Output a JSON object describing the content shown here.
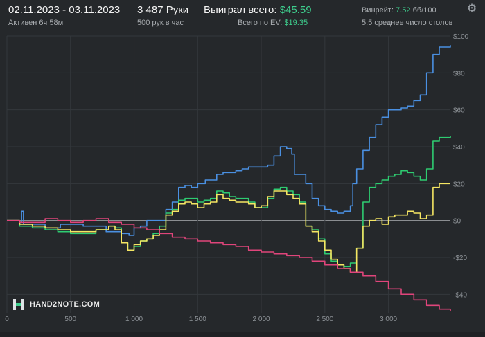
{
  "header": {
    "date_range": "02.11.2023 - 03.11.2023",
    "active_time": "Активен 6ч 58м",
    "hands": "3 487 Руки",
    "hands_rate": "500 рук в час",
    "won_label": "Выиграл всего:",
    "won_value": "$45.59",
    "ev_label": "Всего по EV:",
    "ev_value": "$19.35",
    "winrate_label": "Винрейт:",
    "winrate_value": "7.52",
    "winrate_unit": "бб/100",
    "tables": "5.5 среднее число столов"
  },
  "logo": {
    "text": "HAND2NOTE.COM"
  },
  "colors": {
    "background": "#25282b",
    "grid": "#34383c",
    "zero_line": "#9a9da0",
    "blue": "#4a90e2",
    "green": "#2ecc71",
    "yellow": "#f5e663",
    "red": "#e0457b"
  },
  "chart_data": {
    "type": "line",
    "xlabel": "",
    "ylabel": "",
    "xlim": [
      0,
      3487
    ],
    "ylim": [
      -50,
      100
    ],
    "x_ticks": [
      0,
      500,
      1000,
      1500,
      2000,
      2500,
      3000
    ],
    "x_tick_labels": [
      "0",
      "500",
      "1 000",
      "1 500",
      "2 000",
      "2 500",
      "3 000"
    ],
    "y_ticks": [
      100,
      80,
      60,
      40,
      20,
      0,
      -20,
      -40
    ],
    "y_tick_labels": [
      "$100",
      "$80",
      "$60",
      "$40",
      "$20",
      "$0",
      "-$20",
      "-$40"
    ],
    "grid": true,
    "series": [
      {
        "color": "blue",
        "points": [
          [
            0,
            0
          ],
          [
            100,
            -1
          ],
          [
            115,
            5
          ],
          [
            130,
            -2
          ],
          [
            300,
            -4
          ],
          [
            420,
            -2
          ],
          [
            600,
            -3
          ],
          [
            780,
            -6
          ],
          [
            900,
            -7
          ],
          [
            960,
            -8
          ],
          [
            1000,
            -4
          ],
          [
            1050,
            -3
          ],
          [
            1100,
            0
          ],
          [
            1200,
            0
          ],
          [
            1250,
            6
          ],
          [
            1300,
            10
          ],
          [
            1350,
            18
          ],
          [
            1400,
            19
          ],
          [
            1450,
            18
          ],
          [
            1500,
            20
          ],
          [
            1560,
            22
          ],
          [
            1600,
            22
          ],
          [
            1650,
            25
          ],
          [
            1700,
            26
          ],
          [
            1750,
            26
          ],
          [
            1800,
            27
          ],
          [
            1850,
            28
          ],
          [
            1900,
            29
          ],
          [
            2000,
            29
          ],
          [
            2050,
            30
          ],
          [
            2100,
            35
          ],
          [
            2150,
            40
          ],
          [
            2200,
            39
          ],
          [
            2240,
            36
          ],
          [
            2260,
            25
          ],
          [
            2300,
            25
          ],
          [
            2350,
            20
          ],
          [
            2400,
            12
          ],
          [
            2450,
            8
          ],
          [
            2500,
            6
          ],
          [
            2550,
            5
          ],
          [
            2600,
            4
          ],
          [
            2650,
            5
          ],
          [
            2700,
            8
          ],
          [
            2720,
            20
          ],
          [
            2750,
            28
          ],
          [
            2800,
            38
          ],
          [
            2850,
            45
          ],
          [
            2900,
            52
          ],
          [
            2950,
            56
          ],
          [
            3000,
            60
          ],
          [
            3050,
            60
          ],
          [
            3100,
            61
          ],
          [
            3150,
            62
          ],
          [
            3200,
            65
          ],
          [
            3250,
            68
          ],
          [
            3300,
            80
          ],
          [
            3350,
            90
          ],
          [
            3400,
            94
          ],
          [
            3487,
            95
          ]
        ]
      },
      {
        "color": "green",
        "points": [
          [
            0,
            0
          ],
          [
            100,
            -3
          ],
          [
            200,
            -4
          ],
          [
            300,
            -5
          ],
          [
            400,
            -6
          ],
          [
            500,
            -7
          ],
          [
            600,
            -7
          ],
          [
            700,
            -5
          ],
          [
            800,
            -3
          ],
          [
            850,
            -4
          ],
          [
            900,
            -12
          ],
          [
            950,
            -16
          ],
          [
            1000,
            -14
          ],
          [
            1050,
            -11
          ],
          [
            1100,
            -10
          ],
          [
            1150,
            -7
          ],
          [
            1200,
            -3
          ],
          [
            1250,
            4
          ],
          [
            1300,
            6
          ],
          [
            1350,
            11
          ],
          [
            1400,
            12
          ],
          [
            1450,
            12
          ],
          [
            1500,
            10
          ],
          [
            1550,
            11
          ],
          [
            1600,
            12
          ],
          [
            1650,
            16
          ],
          [
            1700,
            15
          ],
          [
            1750,
            13
          ],
          [
            1800,
            12
          ],
          [
            1850,
            12
          ],
          [
            1900,
            10
          ],
          [
            1950,
            7
          ],
          [
            2000,
            7
          ],
          [
            2050,
            12
          ],
          [
            2100,
            17
          ],
          [
            2150,
            18
          ],
          [
            2200,
            16
          ],
          [
            2250,
            14
          ],
          [
            2300,
            10
          ],
          [
            2350,
            -3
          ],
          [
            2400,
            -5
          ],
          [
            2450,
            -10
          ],
          [
            2500,
            -18
          ],
          [
            2550,
            -22
          ],
          [
            2600,
            -24
          ],
          [
            2650,
            -25
          ],
          [
            2700,
            -23
          ],
          [
            2750,
            -15
          ],
          [
            2800,
            10
          ],
          [
            2850,
            18
          ],
          [
            2900,
            20
          ],
          [
            2950,
            22
          ],
          [
            3000,
            24
          ],
          [
            3050,
            25
          ],
          [
            3100,
            27
          ],
          [
            3150,
            26
          ],
          [
            3200,
            24
          ],
          [
            3250,
            22
          ],
          [
            3300,
            28
          ],
          [
            3350,
            43
          ],
          [
            3400,
            45
          ],
          [
            3487,
            46
          ]
        ]
      },
      {
        "color": "yellow",
        "points": [
          [
            0,
            0
          ],
          [
            100,
            -2
          ],
          [
            200,
            -3
          ],
          [
            300,
            -4
          ],
          [
            400,
            -5
          ],
          [
            500,
            -6
          ],
          [
            600,
            -6
          ],
          [
            700,
            -5
          ],
          [
            800,
            -3
          ],
          [
            850,
            -5
          ],
          [
            900,
            -12
          ],
          [
            950,
            -16
          ],
          [
            1000,
            -13
          ],
          [
            1050,
            -11
          ],
          [
            1100,
            -10
          ],
          [
            1150,
            -8
          ],
          [
            1200,
            -5
          ],
          [
            1250,
            3
          ],
          [
            1300,
            5
          ],
          [
            1350,
            9
          ],
          [
            1400,
            10
          ],
          [
            1450,
            9
          ],
          [
            1500,
            7
          ],
          [
            1550,
            9
          ],
          [
            1600,
            10
          ],
          [
            1650,
            14
          ],
          [
            1700,
            12
          ],
          [
            1750,
            11
          ],
          [
            1800,
            10
          ],
          [
            1850,
            10
          ],
          [
            1900,
            9
          ],
          [
            1950,
            7
          ],
          [
            2000,
            8
          ],
          [
            2050,
            13
          ],
          [
            2100,
            16
          ],
          [
            2150,
            16
          ],
          [
            2200,
            14
          ],
          [
            2250,
            12
          ],
          [
            2300,
            9
          ],
          [
            2350,
            -3
          ],
          [
            2400,
            -6
          ],
          [
            2450,
            -11
          ],
          [
            2500,
            -16
          ],
          [
            2550,
            -21
          ],
          [
            2600,
            -24
          ],
          [
            2650,
            -26
          ],
          [
            2700,
            -28
          ],
          [
            2750,
            -15
          ],
          [
            2800,
            -3
          ],
          [
            2850,
            0
          ],
          [
            2900,
            1
          ],
          [
            2950,
            -2
          ],
          [
            3000,
            2
          ],
          [
            3050,
            3
          ],
          [
            3100,
            3
          ],
          [
            3150,
            5
          ],
          [
            3200,
            4
          ],
          [
            3250,
            1
          ],
          [
            3300,
            3
          ],
          [
            3350,
            18
          ],
          [
            3400,
            20
          ],
          [
            3487,
            20
          ]
        ]
      },
      {
        "color": "red",
        "points": [
          [
            0,
            0
          ],
          [
            100,
            -1
          ],
          [
            200,
            -1
          ],
          [
            300,
            1
          ],
          [
            400,
            0
          ],
          [
            500,
            -1
          ],
          [
            600,
            0
          ],
          [
            700,
            1
          ],
          [
            800,
            -1
          ],
          [
            900,
            -2
          ],
          [
            1000,
            -4
          ],
          [
            1100,
            -5
          ],
          [
            1200,
            -7
          ],
          [
            1300,
            -9
          ],
          [
            1400,
            -10
          ],
          [
            1500,
            -11
          ],
          [
            1600,
            -12
          ],
          [
            1700,
            -13
          ],
          [
            1800,
            -14
          ],
          [
            1900,
            -16
          ],
          [
            2000,
            -17
          ],
          [
            2100,
            -18
          ],
          [
            2200,
            -19
          ],
          [
            2300,
            -20
          ],
          [
            2400,
            -22
          ],
          [
            2500,
            -24
          ],
          [
            2600,
            -26
          ],
          [
            2700,
            -28
          ],
          [
            2800,
            -30
          ],
          [
            2900,
            -33
          ],
          [
            3000,
            -37
          ],
          [
            3100,
            -40
          ],
          [
            3200,
            -43
          ],
          [
            3300,
            -46
          ],
          [
            3400,
            -48
          ],
          [
            3487,
            -49
          ]
        ]
      }
    ]
  }
}
